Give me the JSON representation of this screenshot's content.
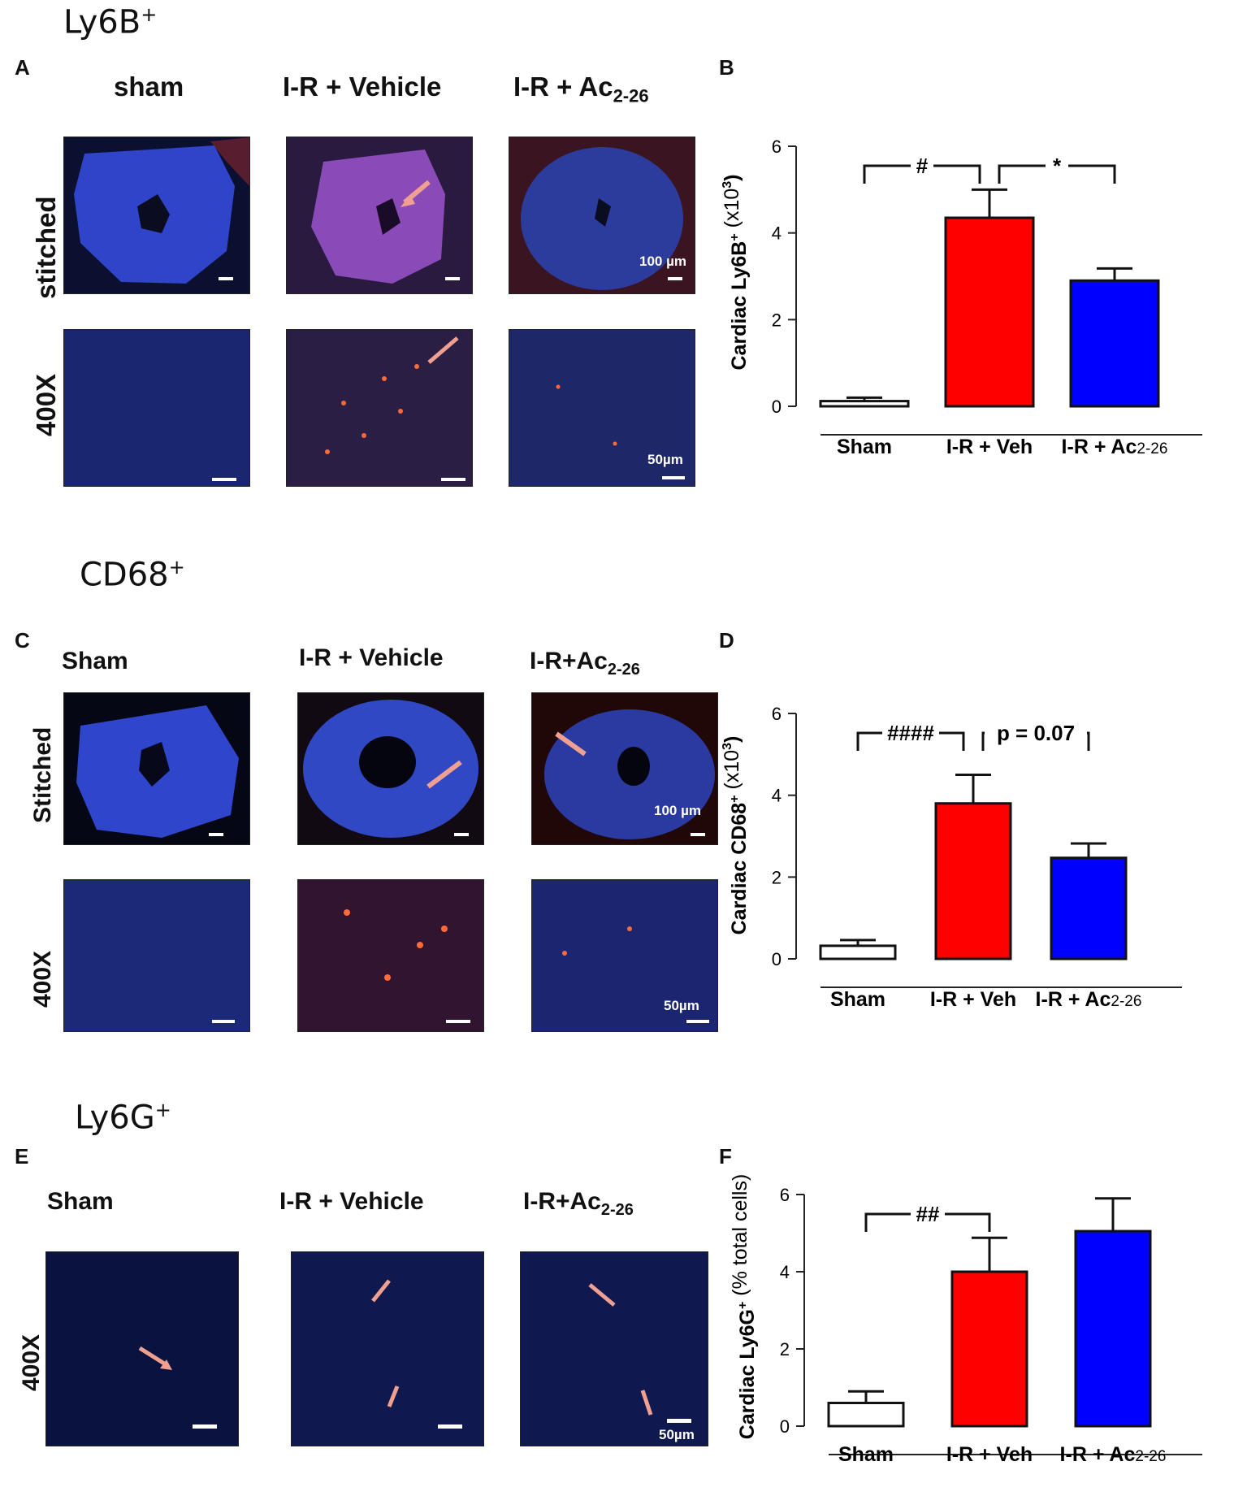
{
  "sections": [
    {
      "title": "Ly6B",
      "title_sup": "+",
      "left_letter": "A",
      "right_letter": "B",
      "columns": [
        {
          "main": "sham",
          "sub": ""
        },
        {
          "main": "I-R + Vehicle",
          "sub": ""
        },
        {
          "main": "I-R + Ac",
          "sub": "2-26"
        }
      ],
      "rows": [
        "stitched",
        "400X"
      ],
      "scale_labels": [
        "100 µm",
        "50µm"
      ]
    },
    {
      "title": "CD68",
      "title_sup": "+",
      "left_letter": "C",
      "right_letter": "D",
      "columns": [
        {
          "main": "Sham",
          "sub": ""
        },
        {
          "main": "I-R + Vehicle",
          "sub": ""
        },
        {
          "main": "I-R+Ac",
          "sub": "2-26"
        }
      ],
      "rows": [
        "Stitched",
        "400X"
      ],
      "scale_labels": [
        "100 µm",
        "50µm"
      ]
    },
    {
      "title": "Ly6G",
      "title_sup": "+",
      "left_letter": "E",
      "right_letter": "F",
      "columns": [
        {
          "main": "Sham",
          "sub": ""
        },
        {
          "main": "I-R + Vehicle",
          "sub": ""
        },
        {
          "main": "I-R+Ac",
          "sub": "2-26"
        }
      ],
      "rows": [
        "400X"
      ],
      "scale_labels": [
        "50µm"
      ]
    }
  ],
  "colors": {
    "sham_bar": "#ffffff",
    "veh_bar": "#ff0000",
    "ac_bar": "#0000ff",
    "tissue_blue": "#2d3fc0",
    "stain_red": "#ff6a3a",
    "arrow": "#f0a090"
  },
  "chart_data": [
    {
      "type": "bar",
      "panel": "B",
      "categories": [
        "Sham",
        "I-R + Veh",
        "I-R + Ac2-26"
      ],
      "category_labels": [
        {
          "main": "Sham",
          "sub": ""
        },
        {
          "main": "I-R + Veh",
          "sub": ""
        },
        {
          "main": "I-R + Ac",
          "sub": "2-26"
        }
      ],
      "values": [
        0.12,
        4.35,
        2.9
      ],
      "errors": [
        0.08,
        0.65,
        0.28
      ],
      "ylabel": "Cardiac Ly6B",
      "ylabel_sup": "+",
      "ylabel_unit": " (x10",
      "ylabel_unit_sup": "3",
      "ylabel_unit_end": ")",
      "ylim": [
        0,
        6
      ],
      "yticks": [
        0,
        2,
        4,
        6
      ],
      "colors": [
        "#ffffff",
        "#ff0000",
        "#0000ff"
      ],
      "significance": [
        {
          "from": 0,
          "to": 1,
          "label": "#"
        },
        {
          "from": 1,
          "to": 2,
          "label": "*"
        }
      ]
    },
    {
      "type": "bar",
      "panel": "D",
      "categories": [
        "Sham",
        "I-R + Veh",
        "I-R + Ac2-26"
      ],
      "category_labels": [
        {
          "main": "Sham",
          "sub": ""
        },
        {
          "main": "I-R + Veh",
          "sub": ""
        },
        {
          "main": "I-R + Ac",
          "sub": "2-26"
        }
      ],
      "values": [
        0.32,
        3.8,
        2.47
      ],
      "errors": [
        0.14,
        0.7,
        0.35
      ],
      "ylabel": "Cardiac CD68",
      "ylabel_sup": "+",
      "ylabel_unit": "  (x10",
      "ylabel_unit_sup": "3",
      "ylabel_unit_end": ")",
      "ylim": [
        0,
        6
      ],
      "yticks": [
        0,
        2,
        4,
        6
      ],
      "colors": [
        "#ffffff",
        "#ff0000",
        "#0000ff"
      ],
      "significance": [
        {
          "from": 0,
          "to": 1,
          "label": "####"
        },
        {
          "from": 1,
          "to": 2,
          "label": "p = 0.07"
        }
      ]
    },
    {
      "type": "bar",
      "panel": "F",
      "categories": [
        "Sham",
        "I-R + Veh",
        "I-R + Ac2-26"
      ],
      "category_labels": [
        {
          "main": "Sham",
          "sub": ""
        },
        {
          "main": "I-R + Veh",
          "sub": ""
        },
        {
          "main": "I-R + Ac",
          "sub": "2-26"
        }
      ],
      "values": [
        0.6,
        4.0,
        5.05
      ],
      "errors": [
        0.3,
        0.88,
        0.85
      ],
      "ylabel": "Cardiac Ly6G",
      "ylabel_sup": "+",
      "ylabel_unit": " (% total cells)",
      "ylabel_unit_sup": "",
      "ylabel_unit_end": "",
      "ylim": [
        0,
        6
      ],
      "yticks": [
        0,
        2,
        4,
        6
      ],
      "colors": [
        "#ffffff",
        "#ff0000",
        "#0000ff"
      ],
      "significance": [
        {
          "from": 0,
          "to": 1,
          "label": "##"
        }
      ]
    }
  ]
}
